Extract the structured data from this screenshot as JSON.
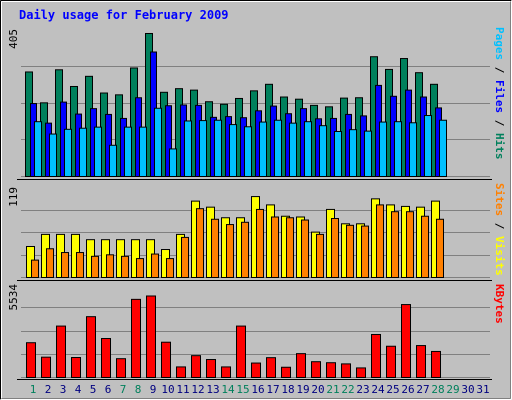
{
  "chart_data": {
    "type": "bar",
    "title": "Daily usage for February 2009",
    "x": [
      "1",
      "2",
      "3",
      "4",
      "5",
      "6",
      "7",
      "8",
      "9",
      "10",
      "11",
      "12",
      "13",
      "14",
      "15",
      "16",
      "17",
      "18",
      "19",
      "20",
      "21",
      "22",
      "23",
      "24",
      "25",
      "26",
      "27",
      "28",
      "29",
      "30",
      "31"
    ],
    "weekend_days": [
      "1",
      "7",
      "8",
      "14",
      "15",
      "21",
      "22",
      "28",
      "29"
    ],
    "panels": [
      {
        "max_label": "405",
        "ymax": 405,
        "right_label_parts": [
          {
            "text": "Pages",
            "series": "Pages"
          },
          {
            "text": " / ",
            "series": ""
          },
          {
            "text": "Files",
            "series": "Files"
          },
          {
            "text": " / ",
            "series": ""
          },
          {
            "text": "Hits",
            "series": "Hits"
          }
        ],
        "series": [
          {
            "name": "Hits",
            "values": [
              288,
              203,
              294,
              248,
              276,
              230,
              225,
              299,
              394,
              232,
              242,
              238,
              206,
              199,
              215,
              236,
              254,
              219,
              213,
              196,
              192,
              216,
              217,
              330,
              295,
              325,
              286,
              254,
              0,
              0,
              0
            ]
          },
          {
            "name": "Files",
            "values": [
              201,
              147,
              205,
              172,
              187,
              171,
              160,
              217,
              343,
              195,
              197,
              196,
              163,
              165,
              162,
              181,
              194,
              173,
              187,
              159,
              160,
              171,
              167,
              251,
              221,
              238,
              219,
              189,
              0,
              0,
              0
            ]
          },
          {
            "name": "Pages",
            "values": [
              151,
              117,
              130,
              133,
              136,
              86,
              136,
              136,
              188,
              76,
              153,
              154,
              155,
              143,
              137,
              150,
              155,
              147,
              151,
              140,
              124,
              129,
              125,
              150,
              151,
              148,
              168,
              155,
              0,
              0,
              0
            ]
          }
        ]
      },
      {
        "max_label": "119",
        "ymax": 119,
        "right_label_parts": [
          {
            "text": "Sites",
            "series": "Sites"
          },
          {
            "text": " / ",
            "series": ""
          },
          {
            "text": "Visits",
            "series": "Visits"
          }
        ],
        "series": [
          {
            "name": "Visits",
            "values": [
              41,
              57,
              57,
              57,
              50,
              50,
              50,
              50,
              50,
              37,
              57,
              101,
              93,
              79,
              79,
              107,
              96,
              81,
              80,
              60,
              90,
              71,
              71,
              104,
              96,
              94,
              93,
              101,
              0,
              0,
              0
            ]
          },
          {
            "name": "Sites",
            "values": [
              23,
              38,
              33,
              33,
              28,
              30,
              28,
              25,
              31,
              25,
              53,
              91,
              77,
              70,
              73,
              90,
              80,
              79,
              76,
              57,
              78,
              69,
              68,
              96,
              87,
              87,
              81,
              77,
              0,
              0,
              0
            ]
          }
        ]
      },
      {
        "max_label": "5534",
        "ymax": 5534,
        "right_label_parts": [
          {
            "text": "KBytes",
            "series": "KBytes"
          }
        ],
        "series": [
          {
            "name": "KBytes",
            "values": [
              2070,
              1210,
              3060,
              1190,
              3620,
              2320,
              1120,
              4650,
              4850,
              2100,
              630,
              1300,
              1070,
              630,
              3060,
              860,
              1180,
              610,
              1420,
              940,
              880,
              810,
              570,
              2560,
              1860,
              4340,
              1900,
              1550,
              0,
              0,
              0
            ]
          }
        ]
      }
    ],
    "colors": {
      "Hits": "#00805c",
      "Files": "#0000ff",
      "Pages": "#00c0ff",
      "Visits": "#ffff00",
      "Sites": "#ff8000",
      "KBytes": "#ff0000",
      "title": "#0000ff",
      "weekday_label": "#000080",
      "weekend_label": "#00805c",
      "separator": "#000000",
      "background": "#c0c0c0",
      "grid": "#808080"
    }
  }
}
